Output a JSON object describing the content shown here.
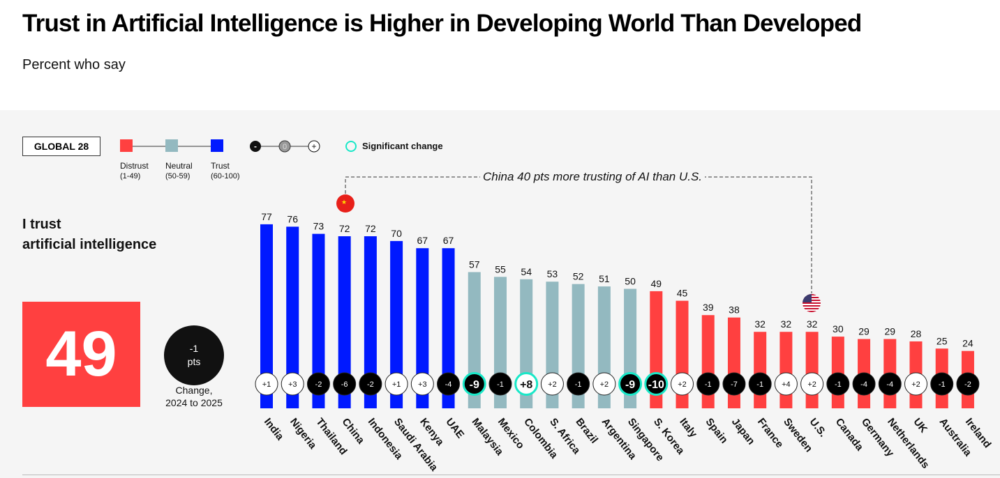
{
  "title": "Trust in Artificial Intelligence is Higher in Developing World Than Developed",
  "subtitle": "Percent who say",
  "legend": {
    "global_label": "GLOBAL 28",
    "distrust": "Distrust",
    "distrust_range": "(1-49)",
    "neutral": "Neutral",
    "neutral_range": "(50-59)",
    "trust": "Trust",
    "trust_range": "(60-100)",
    "minus": "-",
    "zero": "0",
    "plus": "+",
    "significant": "Significant change"
  },
  "question": {
    "line1": "I trust",
    "line2": "artificial intelligence"
  },
  "global_value": "49",
  "global_change": {
    "value": "-1",
    "unit": "pts",
    "caption1": "Change,",
    "caption2": "2024 to 2025"
  },
  "annotation": "China 40 pts more trusting of AI than U.S.",
  "colors": {
    "distrust": "#ff4040",
    "neutral": "#93b9c0",
    "trust": "#0019ff",
    "significant": "#19e8c8"
  },
  "chart_data": {
    "type": "bar",
    "title": "I trust artificial intelligence",
    "ylim": [
      0,
      100
    ],
    "categories": [
      "India",
      "Nigeria",
      "Thailand",
      "China",
      "Indonesia",
      "Saudi Arabia",
      "Kenya",
      "UAE",
      "Malaysia",
      "Mexico",
      "Colombia",
      "S. Africa",
      "Brazil",
      "Argentina",
      "Singapore",
      "S. Korea",
      "Italy",
      "Spain",
      "Japan",
      "France",
      "Sweden",
      "U.S.",
      "Canada",
      "Germany",
      "Netherlands",
      "UK",
      "Australia",
      "Ireland"
    ],
    "values": [
      77,
      76,
      73,
      72,
      72,
      70,
      67,
      67,
      57,
      55,
      54,
      53,
      52,
      51,
      50,
      49,
      45,
      39,
      38,
      32,
      32,
      32,
      30,
      29,
      29,
      28,
      25,
      24
    ],
    "change": [
      "+1",
      "+3",
      "-2",
      "-6",
      "-2",
      "+1",
      "+3",
      "-4",
      "-9",
      "-1",
      "+8",
      "+2",
      "-1",
      "+2",
      "-9",
      "-10",
      "+2",
      "-1",
      "-7",
      "-1",
      "+4",
      "+2",
      "-1",
      "-4",
      "-4",
      "+2",
      "-1",
      "-2"
    ],
    "significant": [
      "Malaysia",
      "Colombia",
      "Singapore",
      "S. Korea"
    ]
  }
}
